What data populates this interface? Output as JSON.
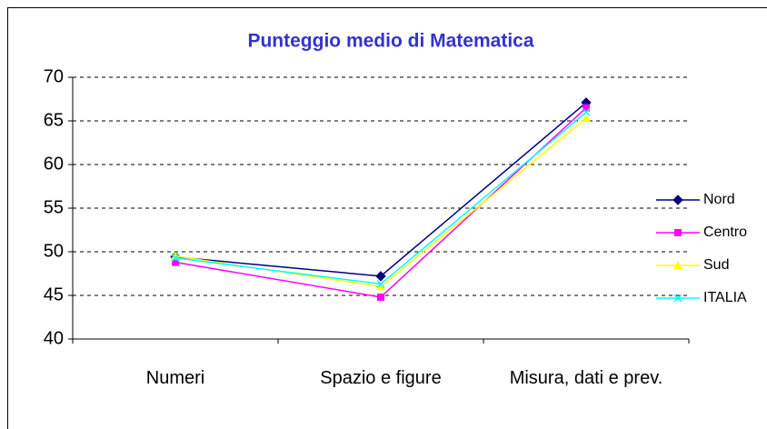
{
  "chart_data": {
    "type": "line",
    "title": "Punteggio medio di Matematica",
    "categories": [
      "Numeri",
      "Spazio e figure",
      "Misura, dati e prev."
    ],
    "series": [
      {
        "name": "Nord",
        "color": "#000080",
        "marker": "diamond",
        "values": [
          49.4,
          47.2,
          67.1
        ]
      },
      {
        "name": "Centro",
        "color": "#ff00ff",
        "marker": "square",
        "values": [
          48.8,
          44.8,
          66.5
        ]
      },
      {
        "name": "Sud",
        "color": "#ffff00",
        "marker": "triangle",
        "values": [
          49.5,
          46.0,
          65.3
        ]
      },
      {
        "name": "ITALIA",
        "color": "#00ffff",
        "marker": "x",
        "values": [
          49.3,
          46.3,
          66.0
        ]
      }
    ],
    "ylim": [
      40,
      70
    ],
    "yticks": [
      40,
      45,
      50,
      55,
      60,
      65,
      70
    ],
    "grid": true,
    "legend": "right"
  }
}
